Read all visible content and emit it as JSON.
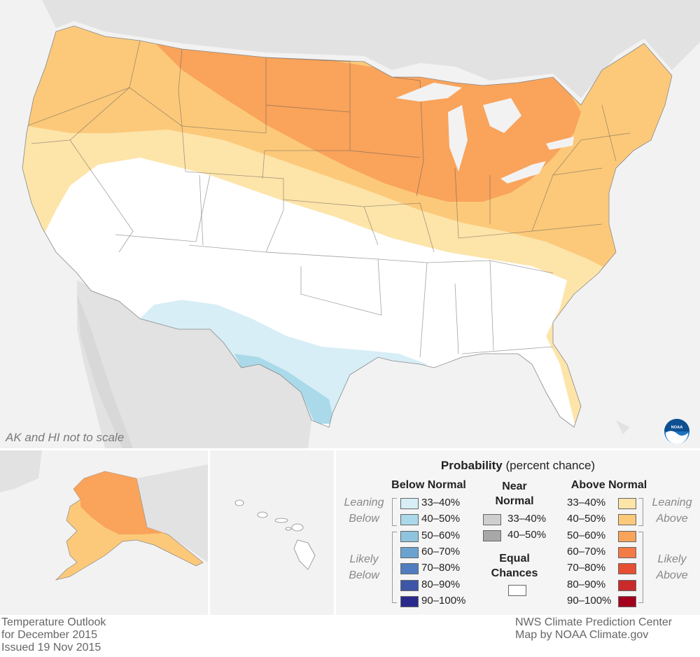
{
  "map": {
    "scale_note": "AK and HI not to scale",
    "logo": "noaa-logo",
    "colors": {
      "background_land": "#e2e2e2",
      "water": "#f2f2f2",
      "equal_chances": "#ffffff",
      "leaning_above": "#fde4a9",
      "above_40_50": "#fcc97a",
      "above_50_60": "#f9a35b",
      "leaning_below": "#d7eef6",
      "below_40_50": "#aad9ea"
    }
  },
  "legend": {
    "title_bold": "Probability",
    "title_rest": "(percent chance)",
    "below": {
      "heading": "Below Normal",
      "group_leaning": [
        "Leaning",
        "Below"
      ],
      "group_likely": [
        "Likely",
        "Below"
      ],
      "items": [
        {
          "label": "33–40%",
          "color": "#d7eef6"
        },
        {
          "label": "40–50%",
          "color": "#aad9ea"
        },
        {
          "label": "50–60%",
          "color": "#8ec4de"
        },
        {
          "label": "60–70%",
          "color": "#6aa3d0"
        },
        {
          "label": "70–80%",
          "color": "#4f7dbf"
        },
        {
          "label": "80–90%",
          "color": "#3d56a8"
        },
        {
          "label": "90–100%",
          "color": "#2a2a8c"
        }
      ]
    },
    "near": {
      "heading": [
        "Near",
        "Normal"
      ],
      "items": [
        {
          "label": "33–40%",
          "color": "#cfcfcf"
        },
        {
          "label": "40–50%",
          "color": "#a8a8a8"
        }
      ],
      "equal_heading": [
        "Equal",
        "Chances"
      ],
      "equal_color": "#ffffff"
    },
    "above": {
      "heading": "Above Normal",
      "group_leaning": [
        "Leaning",
        "Above"
      ],
      "group_likely": [
        "Likely",
        "Above"
      ],
      "items": [
        {
          "label": "33–40%",
          "color": "#fde4a9"
        },
        {
          "label": "40–50%",
          "color": "#fcc97a"
        },
        {
          "label": "50–60%",
          "color": "#f9a35b"
        },
        {
          "label": "60–70%",
          "color": "#f47b45"
        },
        {
          "label": "70–80%",
          "color": "#e64f33"
        },
        {
          "label": "80–90%",
          "color": "#c92a2a"
        },
        {
          "label": "90–100%",
          "color": "#a3001e"
        }
      ]
    }
  },
  "footer": {
    "left": [
      "Temperature Outlook",
      "for December 2015",
      "Issued 19 Nov 2015"
    ],
    "right": [
      "NWS Climate Prediction Center",
      "Map by NOAA Climate.gov"
    ]
  }
}
